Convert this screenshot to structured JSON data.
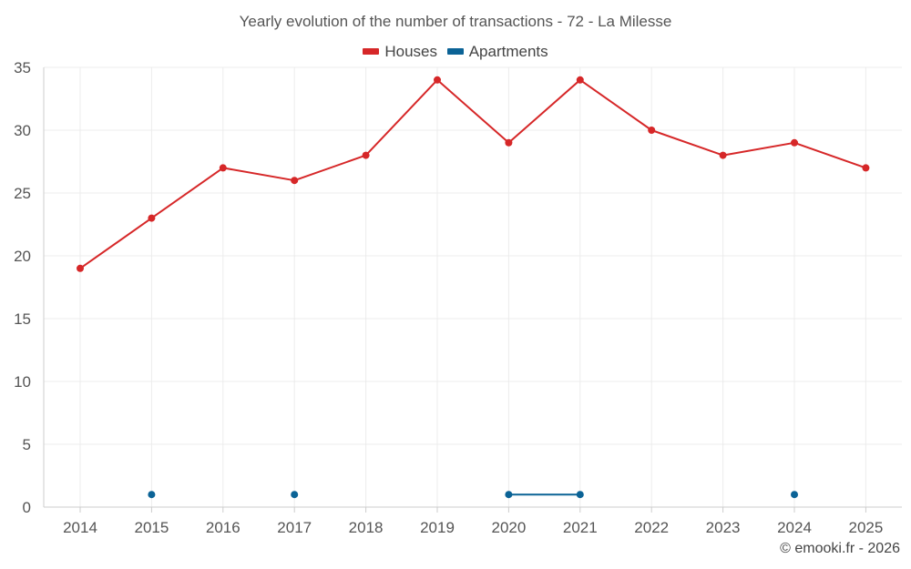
{
  "chart_data": {
    "type": "line",
    "title": "Yearly evolution of the number of transactions - 72 - La Milesse",
    "categories": [
      "2014",
      "2015",
      "2016",
      "2017",
      "2018",
      "2019",
      "2020",
      "2021",
      "2022",
      "2023",
      "2024",
      "2025"
    ],
    "series": [
      {
        "name": "Houses",
        "color": "#d62728",
        "values": [
          19,
          23,
          27,
          26,
          28,
          34,
          29,
          34,
          30,
          28,
          29,
          27
        ]
      },
      {
        "name": "Apartments",
        "color": "#0b6396",
        "values": [
          null,
          1,
          null,
          1,
          null,
          null,
          1,
          1,
          null,
          null,
          1,
          null
        ]
      }
    ],
    "ylim": [
      0,
      35
    ],
    "yticks": [
      0,
      5,
      10,
      15,
      20,
      25,
      30,
      35
    ],
    "xlabel": "",
    "ylabel": "",
    "grid": true,
    "legend": "top-center"
  },
  "credit": "© emooki.fr - 2026"
}
